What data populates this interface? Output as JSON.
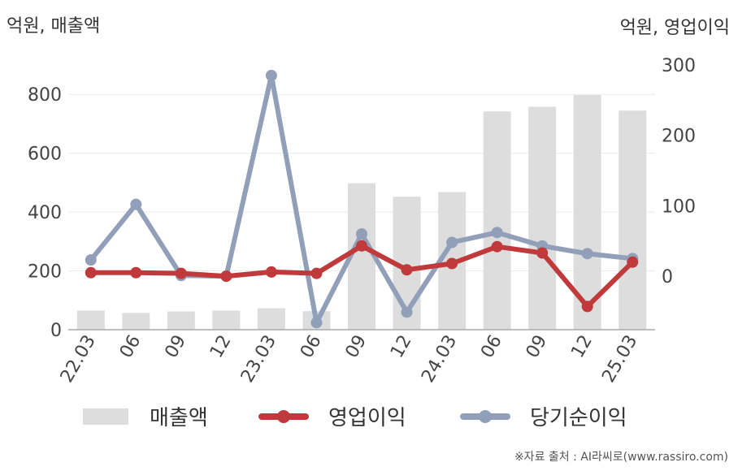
{
  "chart_data": {
    "type": "bar",
    "categories": [
      "22.03",
      "06",
      "09",
      "12",
      "23.03",
      "06",
      "09",
      "12",
      "24.03",
      "06",
      "09",
      "12",
      "25.03"
    ],
    "left_axis": {
      "label": "억원, 매출액",
      "ylim": [
        0,
        900
      ],
      "ticks": [
        0,
        200,
        400,
        600,
        800
      ]
    },
    "right_axis": {
      "label": "억원, 영업이익",
      "ylim": [
        -76,
        300
      ],
      "ticks": [
        0,
        100,
        200,
        300
      ]
    },
    "series": [
      {
        "name": "매출액",
        "type": "bar",
        "axis": "left",
        "color": "#dddddd",
        "values": [
          65,
          57,
          62,
          65,
          73,
          63,
          498,
          452,
          468,
          742,
          758,
          798,
          745
        ]
      },
      {
        "name": "영업이익",
        "type": "line",
        "axis": "right",
        "color": "#c0393b",
        "values": [
          5,
          5,
          4,
          0,
          6,
          4,
          43,
          9,
          18,
          42,
          33,
          -43,
          20
        ]
      },
      {
        "name": "당기순이익",
        "type": "line",
        "axis": "right",
        "color": "#919fb9",
        "values": [
          23,
          102,
          1,
          0,
          285,
          -66,
          60,
          -51,
          48,
          62,
          43,
          32,
          25
        ]
      }
    ],
    "grid": true,
    "legend_position": "bottom"
  },
  "source": "※자료 출처 : AI라씨로(www.rassiro.com)"
}
